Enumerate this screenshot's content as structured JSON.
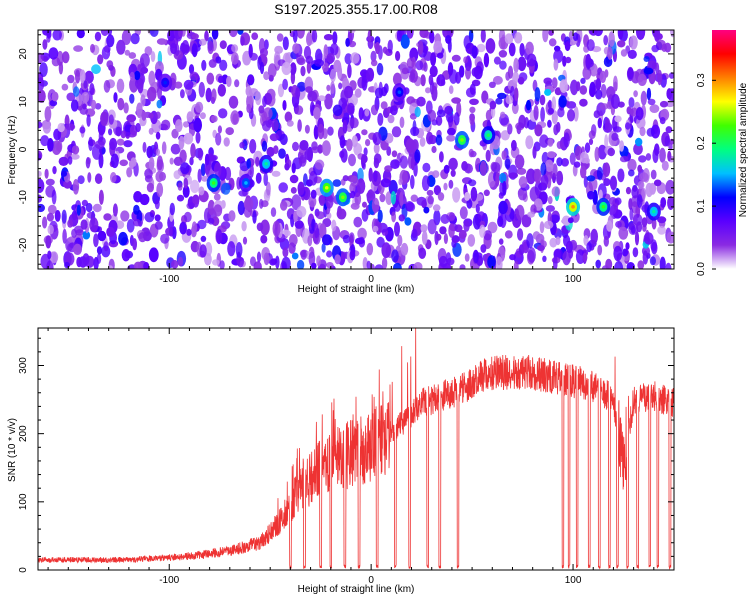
{
  "title": "S197.2025.355.17.00.R08",
  "chart_data": [
    {
      "type": "heatmap",
      "xlabel": "Height of straight line (km)",
      "ylabel": "Frequency (Hz)",
      "xlim": [
        -165,
        150
      ],
      "ylim": [
        -25,
        25
      ],
      "x_ticks": [
        -100,
        0,
        100
      ],
      "x_tick_labels": [
        "-100",
        "0",
        "100"
      ],
      "y_ticks": [
        -20,
        -10,
        0,
        10,
        20
      ],
      "y_tick_labels": [
        "-20",
        "-10",
        "0",
        "10",
        "20"
      ],
      "colorbar": {
        "label": "Normalized spectral amplitude",
        "range": [
          0.0,
          0.38
        ],
        "ticks": [
          0.0,
          0.1,
          0.2,
          0.3
        ],
        "tick_labels": [
          "0.0",
          "0.1",
          "0.2",
          "0.3"
        ],
        "colormap": [
          "#ffffff",
          "#8a2be2",
          "#5a00ff",
          "#0000ff",
          "#00c0ff",
          "#00ff80",
          "#40ff00",
          "#ffff00",
          "#ff8000",
          "#ff0000",
          "#ff0080"
        ]
      },
      "hot_spots": [
        {
          "x": -78,
          "y": -7,
          "amp": 0.22
        },
        {
          "x": -52,
          "y": -3,
          "amp": 0.18
        },
        {
          "x": -22,
          "y": -8,
          "amp": 0.26
        },
        {
          "x": -14,
          "y": -10,
          "amp": 0.24
        },
        {
          "x": 45,
          "y": 2,
          "amp": 0.24
        },
        {
          "x": 58,
          "y": 3,
          "amp": 0.2
        },
        {
          "x": 100,
          "y": -12,
          "amp": 0.3
        },
        {
          "x": 115,
          "y": -12,
          "amp": 0.22
        },
        {
          "x": 140,
          "y": -13,
          "amp": 0.18
        },
        {
          "x": -62,
          "y": -7,
          "amp": 0.15
        },
        {
          "x": 14,
          "y": 12,
          "amp": 0.13
        },
        {
          "x": -102,
          "y": 14,
          "amp": 0.12
        }
      ]
    },
    {
      "type": "line",
      "xlabel": "Height of straight line (km)",
      "ylabel": "SNR (10 * v/v)",
      "xlim": [
        -165,
        150
      ],
      "ylim": [
        0,
        355
      ],
      "x_ticks": [
        -100,
        0,
        100
      ],
      "x_tick_labels": [
        "-100",
        "0",
        "100"
      ],
      "y_ticks": [
        0,
        100,
        200,
        300
      ],
      "y_tick_labels": [
        "0",
        "100",
        "200",
        "300"
      ],
      "series": [
        {
          "name": "SNR",
          "color": "#ee3333",
          "envelope_x": [
            -165,
            -120,
            -90,
            -70,
            -55,
            -45,
            -35,
            -25,
            -15,
            -5,
            5,
            15,
            25,
            35,
            45,
            55,
            65,
            80,
            95,
            110,
            120,
            125,
            130,
            140,
            150
          ],
          "envelope_y": [
            15,
            15,
            20,
            28,
            40,
            70,
            120,
            150,
            165,
            175,
            190,
            215,
            245,
            255,
            265,
            285,
            290,
            290,
            280,
            270,
            250,
            150,
            250,
            255,
            245
          ],
          "dropouts_x": [
            -40,
            -33,
            -25,
            -20,
            -13,
            -6,
            3,
            12,
            19,
            28,
            34,
            43,
            95,
            98,
            102,
            108,
            113,
            118,
            122,
            127,
            132,
            138,
            142,
            148
          ]
        }
      ]
    }
  ]
}
